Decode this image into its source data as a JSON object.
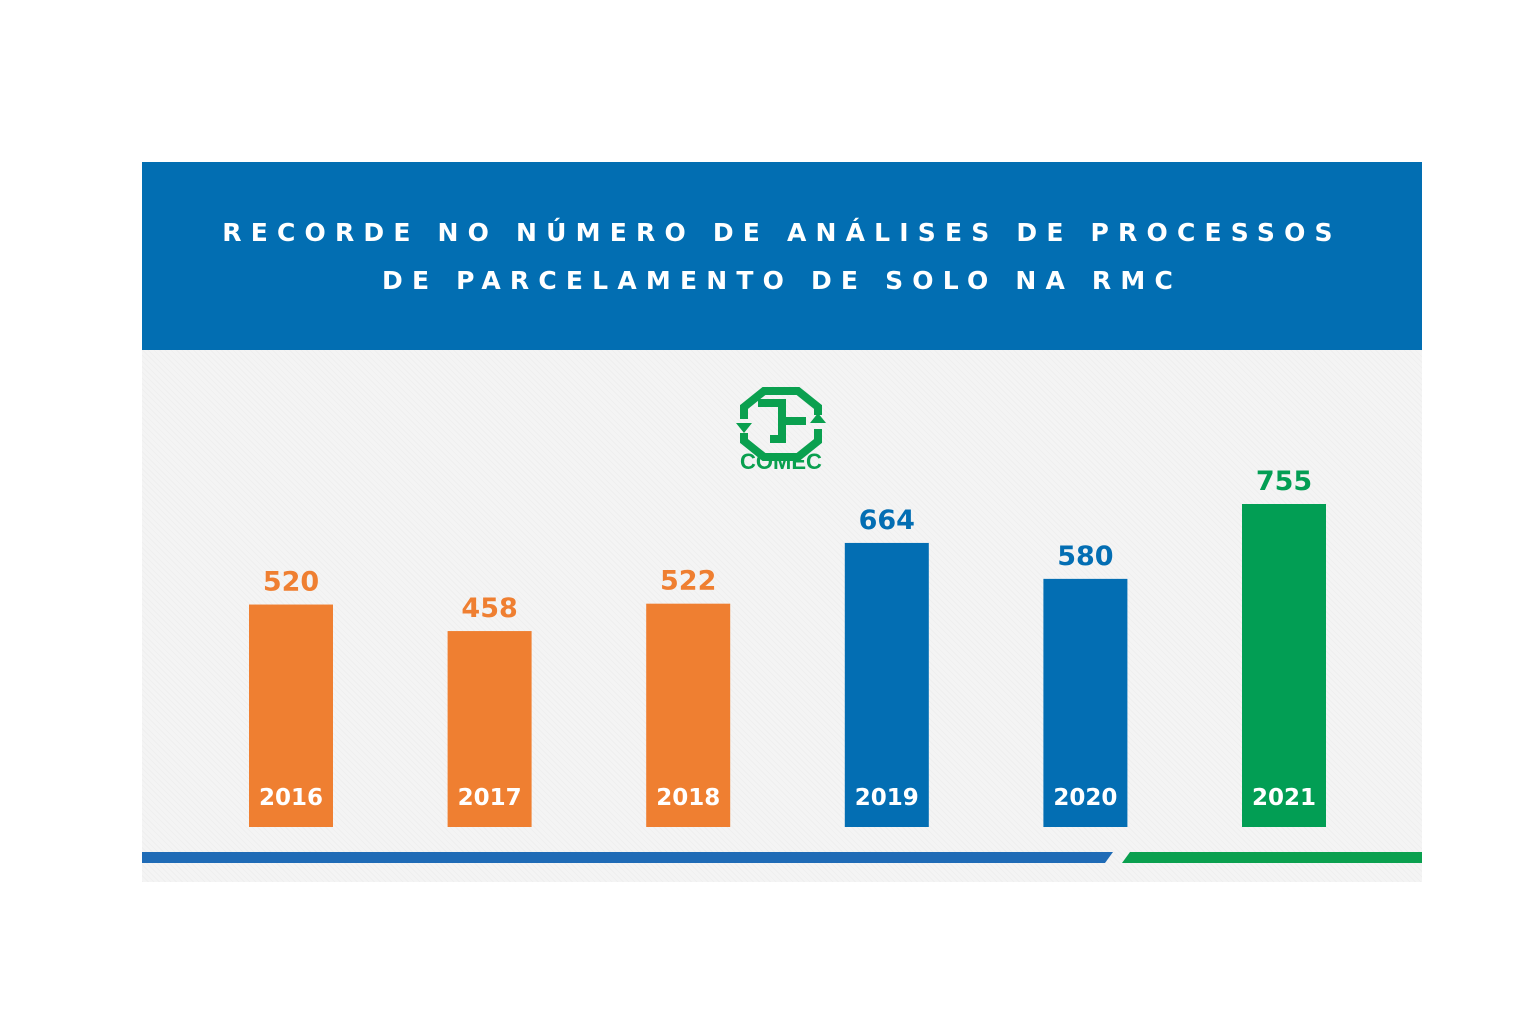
{
  "header": {
    "title_line1": "RECORDE NO NÚMERO DE ANÁLISES DE PROCESSOS",
    "title_line2": "DE PARCELAMENTO DE SOLO NA RMC",
    "background_color": "#026eb2"
  },
  "logo": {
    "text": "COMEC",
    "icon": "comec-logo-icon",
    "color": "#0aa04f"
  },
  "colors": {
    "orange": "#ef7f31",
    "blue": "#036eb3",
    "green": "#029e54",
    "footer_blue": "#1f6bb6",
    "footer_green": "#0aa04f"
  },
  "chart_data": {
    "type": "bar",
    "title": "RECORDE NO NÚMERO DE ANÁLISES DE PROCESSOS DE PARCELAMENTO DE SOLO NA RMC",
    "categories": [
      "2016",
      "2017",
      "2018",
      "2019",
      "2020",
      "2021"
    ],
    "values": [
      520,
      458,
      522,
      664,
      580,
      755
    ],
    "bar_colors": [
      "#ef7f31",
      "#ef7f31",
      "#ef7f31",
      "#036eb3",
      "#036eb3",
      "#029e54"
    ],
    "xlabel": "",
    "ylabel": "",
    "data_labels": true,
    "grid": false,
    "legend": "none"
  }
}
